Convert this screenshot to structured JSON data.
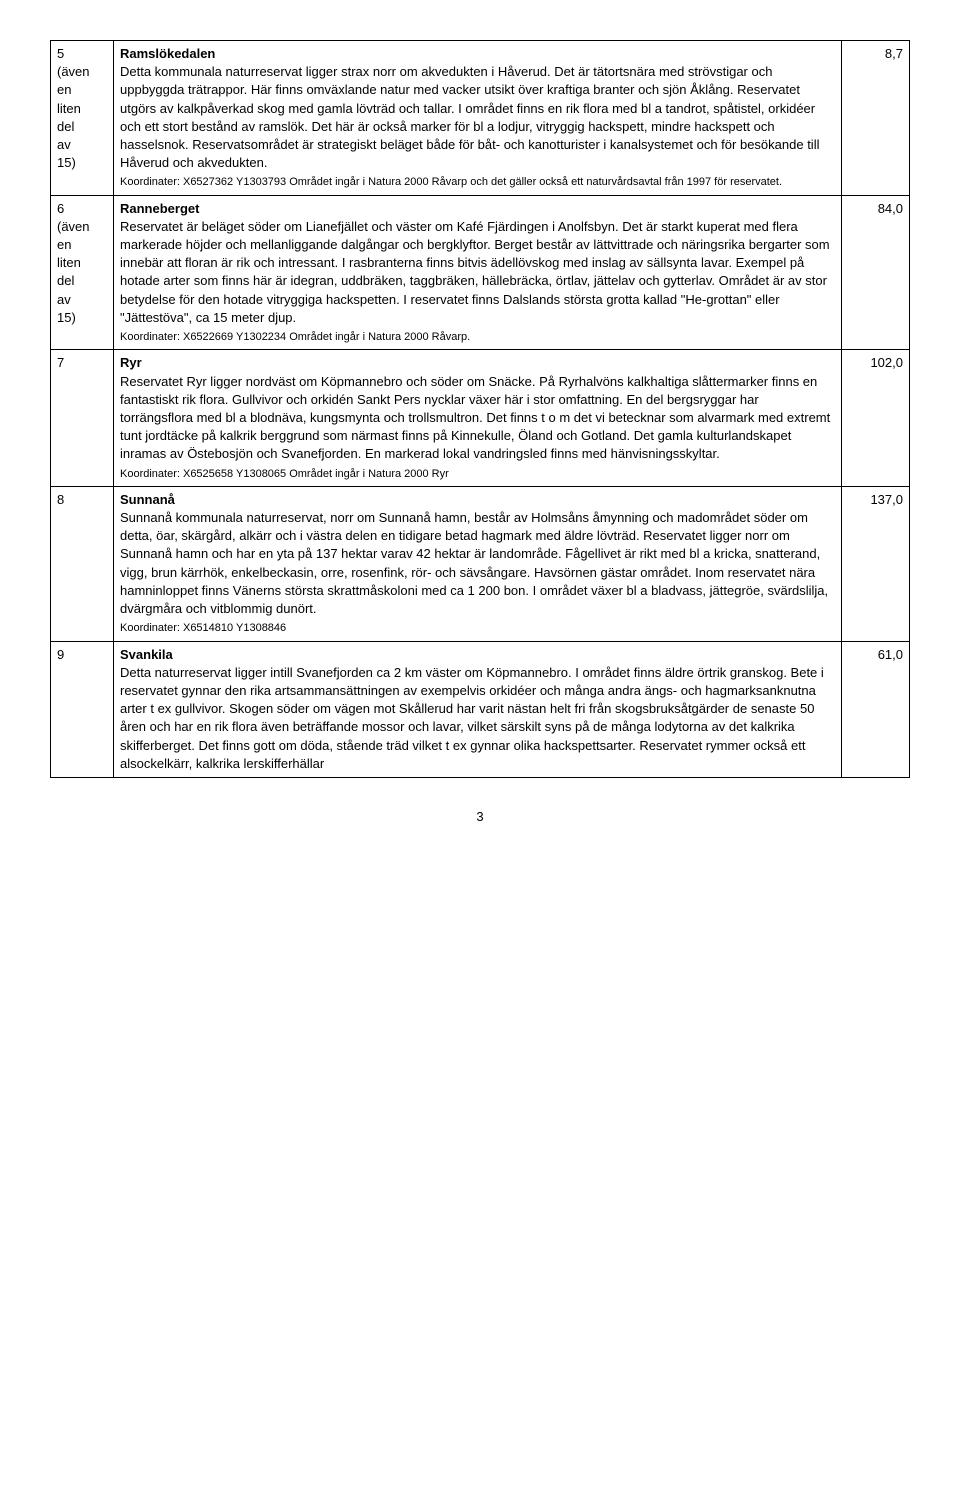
{
  "rows": [
    {
      "num": "5\n(även\nen\nliten\ndel\nav\n15)",
      "title": "Ramslökedalen",
      "body": "Detta kommunala naturreservat ligger strax norr om akvedukten i Håverud. Det är tätortsnära med strövstigar och uppbyggda trätrappor. Här finns omväxlande natur med vacker utsikt över kraftiga branter och sjön Åklång. Reservatet utgörs av kalkpåverkad skog med gamla lövträd och tallar. I området finns en rik flora med bl a tandrot, spåtistel, orkidéer och ett stort bestånd av ramslök. Det här är också marker för bl a lodjur, vitryggig hackspett, mindre hackspett och hasselsnok. Reservatsområdet är strategiskt beläget både för båt- och kanotturister i kanalsystemet och för besökande till Håverud och akvedukten.",
      "coords": "Koordinater: X6527362 Y1303793   Området ingår i Natura 2000 Råvarp och det gäller också ett naturvårdsavtal från 1997 för reservatet.",
      "area": "8,7"
    },
    {
      "num": "6\n(även\nen\nliten\ndel\nav\n15)",
      "title": "Ranneberget",
      "body": "Reservatet är beläget söder om Lianefjället och väster om Kafé Fjärdingen i Anolfsbyn. Det är starkt kuperat med flera markerade höjder och mellanliggande dalgångar och bergklyftor. Berget består av lättvittrade och näringsrika bergarter som innebär att floran är rik och intressant. I rasbranterna finns bitvis ädellövskog med inslag av sällsynta lavar. Exempel på hotade arter som finns här är idegran, uddbräken, taggbräken, hällebräcka, örtlav, jättelav och gytterlav. Området är av stor betydelse för den hotade vitryggiga hackspetten. I reservatet finns Dalslands största grotta kallad \"He-grottan\" eller \"Jättestöva\", ca 15 meter djup.",
      "coords": "Koordinater: X6522669 Y1302234   Området ingår i Natura 2000 Råvarp.",
      "area": "84,0"
    },
    {
      "num": "7",
      "title": "Ryr",
      "body": "Reservatet Ryr ligger nordväst om Köpmannebro och söder om Snäcke. På Ryrhalvöns kalkhaltiga slåttermarker finns en fantastiskt rik flora. Gullvivor och orkidén Sankt Pers nycklar växer här i stor omfattning. En del bergsryggar har torrängsflora med bl a blodnäva, kungsmynta och trollsmultron. Det finns t o m det vi betecknar som alvarmark med extremt tunt jordtäcke på kalkrik berggrund som närmast finns på Kinnekulle, Öland och Gotland. Det gamla kulturlandskapet inramas av Östebosjön och Svanefjorden. En markerad lokal vandringsled finns med hänvisningsskyltar.",
      "coords": "Koordinater: X6525658 Y1308065   Området ingår i Natura 2000 Ryr",
      "area": "102,0"
    },
    {
      "num": "8",
      "title": "Sunnanå",
      "body": "Sunnanå kommunala naturreservat, norr om Sunnanå hamn, består av Holmsåns åmynning och madområdet söder om detta, öar, skärgård, alkärr och i västra delen en tidigare betad hagmark med äldre lövträd. Reservatet ligger norr om Sunnanå hamn och har en yta på 137 hektar varav 42 hektar är landområde. Fågellivet är rikt med bl a kricka, snatterand, vigg, brun kärrhök, enkelbeckasin, orre, rosenfink, rör- och sävsångare. Havsörnen gästar området. Inom reservatet nära hamninloppet finns Vänerns största skrattmåskoloni med ca 1 200 bon. I området växer bl a bladvass, jättegröe, svärdslilja, dvärgmåra och vitblommig dunört.",
      "coords": "Koordinater: X6514810 Y1308846",
      "area": "137,0"
    },
    {
      "num": "9",
      "title": "Svankila",
      "body": "Detta naturreservat ligger intill Svanefjorden ca 2 km väster om Köpmannebro. I området finns äldre örtrik granskog. Bete i reservatet gynnar den rika artsammansättningen av exempelvis orkidéer och många andra ängs- och hagmarksanknutna arter t ex gullvivor. Skogen söder om vägen mot Skållerud har varit nästan helt fri från skogsbruksåtgärder de senaste 50 åren och har en rik flora även beträffande mossor och lavar, vilket särskilt syns på de många lodytorna av det kalkrika skifferberget. Det finns gott om döda, stående träd vilket t ex gynnar olika hackspettsarter. Reservatet rymmer också ett alsockelkärr, kalkrika lerskifferhällar",
      "coords": "",
      "area": "61,0"
    }
  ],
  "page_number": "3"
}
